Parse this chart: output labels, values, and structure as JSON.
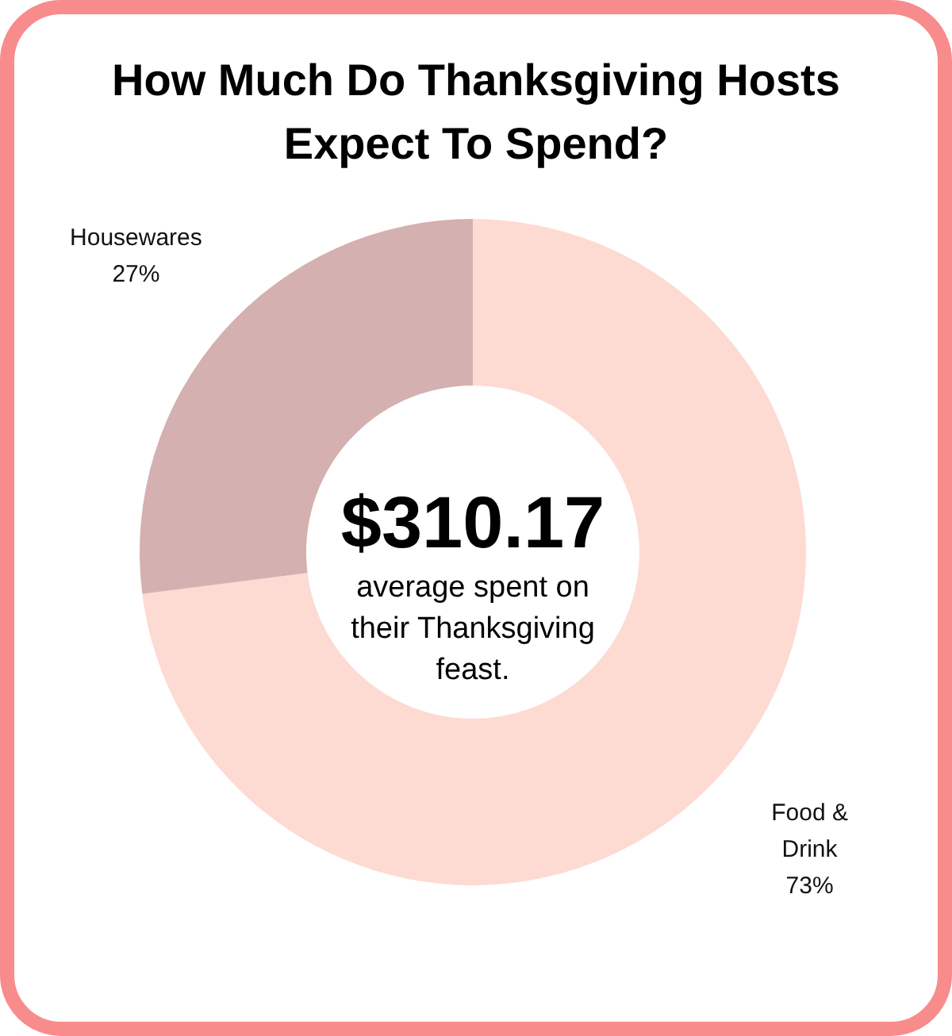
{
  "chart_data": {
    "type": "donut",
    "title": "How Much Do Thanksgiving Hosts Expect To Spend?",
    "categories": [
      "Food & Drink",
      "Housewares"
    ],
    "values": [
      73,
      27
    ],
    "colors": [
      "#fddbd2",
      "#d5b0b0"
    ],
    "value_labels": [
      "73%",
      "27%"
    ],
    "annotations": [
      "$310.17",
      "average spent on their Thanksgiving feast."
    ]
  }
}
